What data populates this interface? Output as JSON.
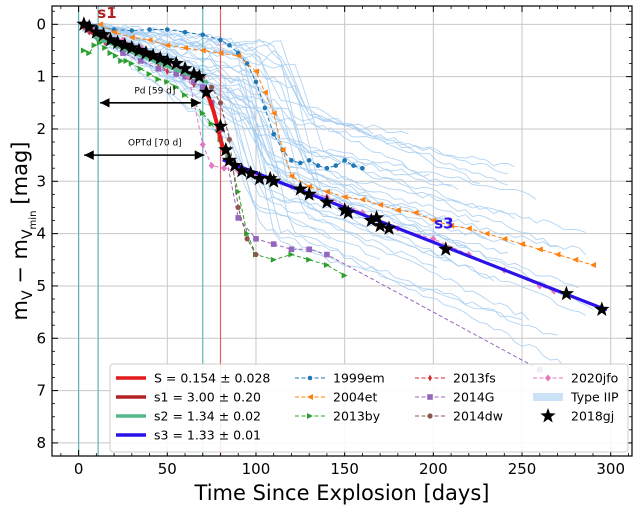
{
  "chart_data": {
    "type": "line",
    "xlabel": "Time Since Explosion [days]",
    "ylabel": "m_V − m_V_min [mag]",
    "ylabel_parts": {
      "main": "m",
      "sub1": "V",
      "minus": " − m",
      "sub2": "V",
      "subsub": "min",
      "unit": "[mag]"
    },
    "xlim": [
      -15,
      312
    ],
    "ylim": [
      8.25,
      -0.35
    ],
    "y_inverted": true,
    "xticks": [
      0,
      50,
      100,
      150,
      200,
      250,
      300
    ],
    "yticks": [
      0,
      1,
      2,
      3,
      4,
      5,
      6,
      7,
      8
    ],
    "grid": true,
    "legend_position": "lower-center",
    "colors": {
      "S": "#e41a1c",
      "s1": "#b22222",
      "s2": "#55b88a",
      "s3": "#2a12e8",
      "1999em": "#1f77b4",
      "2004et": "#ff7f0e",
      "2013by": "#2ca02c",
      "2013fs": "#d62728",
      "2014G": "#9467bd",
      "2014dw": "#8c564b",
      "2020jfo": "#e377c2",
      "TypeIIP": "#a6cdf0",
      "2018gj": "#000000",
      "vline_explosion": "#5fb3b3",
      "vline_ptd": "#5fb3b3",
      "vline_tr": "#e06060"
    },
    "fit_lines": [
      {
        "key": "S",
        "label": "S = 0.154 ± 0.028",
        "x": [
          72,
          74,
          76,
          78,
          80,
          82
        ],
        "y": [
          1.3,
          1.45,
          1.65,
          1.9,
          2.2,
          2.45
        ]
      },
      {
        "key": "s1",
        "label": "s1 = 3.00 ± 0.20",
        "x": [
          3,
          9
        ],
        "y": [
          0.02,
          0.2
        ]
      },
      {
        "key": "s2",
        "label": "s2 = 1.34 ± 0.02",
        "x": [
          9,
          72
        ],
        "y": [
          0.25,
          1.1
        ]
      },
      {
        "key": "s3",
        "label": "s3 = 1.33 ± 0.01",
        "x": [
          82,
          297
        ],
        "y": [
          2.6,
          5.45
        ]
      }
    ],
    "series": [
      {
        "name": "1999em",
        "key": "1999em",
        "marker": "circle",
        "x": [
          2,
          10,
          20,
          30,
          40,
          50,
          60,
          70,
          80,
          85,
          90,
          95,
          100,
          105,
          110,
          115,
          120,
          125,
          130,
          135,
          140,
          145,
          150,
          155,
          160
        ],
        "y": [
          0.0,
          0.05,
          0.1,
          0.12,
          0.1,
          0.1,
          0.15,
          0.2,
          0.3,
          0.4,
          0.55,
          0.75,
          1.1,
          1.6,
          2.1,
          2.4,
          2.6,
          2.65,
          2.6,
          2.7,
          2.75,
          2.7,
          2.6,
          2.7,
          2.75
        ]
      },
      {
        "name": "2004et",
        "key": "2004et",
        "marker": "triangle-left",
        "x": [
          12,
          20,
          30,
          40,
          50,
          60,
          70,
          80,
          90,
          100,
          105,
          110,
          115,
          120,
          130,
          140,
          150,
          160,
          170,
          180,
          190,
          200,
          210,
          220,
          230,
          240,
          250,
          260,
          270,
          280,
          290
        ],
        "y": [
          0.0,
          0.15,
          0.25,
          0.3,
          0.4,
          0.45,
          0.5,
          0.55,
          0.6,
          0.9,
          1.3,
          1.7,
          2.4,
          2.9,
          3.1,
          3.2,
          3.3,
          3.35,
          3.45,
          3.55,
          3.6,
          3.75,
          3.85,
          3.9,
          4.0,
          4.1,
          4.2,
          4.3,
          4.4,
          4.5,
          4.6
        ]
      },
      {
        "name": "2013by",
        "key": "2013by",
        "marker": "triangle-right",
        "x": [
          3,
          6,
          9,
          12,
          15,
          18,
          21,
          24,
          27,
          30,
          35,
          40,
          45,
          50,
          55,
          60,
          65,
          70,
          75,
          80,
          85,
          90,
          95,
          100,
          110,
          120,
          130,
          140,
          150
        ],
        "y": [
          0.5,
          0.55,
          0.4,
          0.35,
          0.45,
          0.55,
          0.6,
          0.7,
          0.7,
          0.75,
          0.85,
          0.95,
          1.05,
          1.1,
          1.2,
          1.35,
          1.5,
          1.7,
          1.9,
          2.2,
          2.5,
          3.2,
          4.0,
          4.4,
          4.5,
          4.4,
          4.5,
          4.6,
          4.8
        ]
      },
      {
        "name": "2013fs",
        "key": "2013fs",
        "marker": "diamond-thin",
        "x": [
          3,
          6,
          10,
          15,
          20,
          25,
          30,
          35,
          40,
          45,
          50,
          55,
          60,
          65
        ],
        "y": [
          0.05,
          0.15,
          0.25,
          0.35,
          0.35,
          0.4,
          0.45,
          0.55,
          0.6,
          0.75,
          0.9,
          0.95,
          1.0,
          1.15
        ]
      },
      {
        "name": "2014G",
        "key": "2014G",
        "marker": "square",
        "x": [
          5,
          15,
          25,
          35,
          45,
          55,
          60,
          65,
          70,
          75,
          80,
          90,
          100,
          110,
          120,
          130,
          140,
          260
        ],
        "y": [
          0.1,
          0.3,
          0.55,
          0.7,
          0.85,
          0.95,
          1.0,
          1.1,
          1.2,
          1.5,
          2.0,
          3.7,
          4.1,
          4.2,
          4.3,
          4.3,
          4.4,
          6.6
        ]
      },
      {
        "name": "2014dw",
        "key": "2014dw",
        "marker": "circle-small",
        "x": [
          5,
          10,
          15,
          20,
          25,
          30,
          35,
          40,
          45,
          50,
          55,
          60,
          65,
          70,
          75,
          80,
          85,
          90,
          95,
          100
        ],
        "y": [
          0.1,
          0.2,
          0.25,
          0.3,
          0.35,
          0.4,
          0.45,
          0.55,
          0.6,
          0.7,
          0.8,
          0.85,
          0.95,
          1.0,
          1.2,
          1.5,
          2.2,
          3.5,
          4.1,
          4.4
        ]
      },
      {
        "name": "2020jfo",
        "key": "2020jfo",
        "marker": "diamond",
        "x": [
          2,
          8,
          15,
          25,
          35,
          45,
          55,
          62,
          70,
          75,
          82,
          90,
          100,
          110,
          120,
          140,
          160,
          180,
          200,
          220,
          240,
          260,
          268
        ],
        "y": [
          0.0,
          0.1,
          0.2,
          0.3,
          0.45,
          0.6,
          0.8,
          1.0,
          2.3,
          2.7,
          2.75,
          2.8,
          2.9,
          3.0,
          3.1,
          3.3,
          3.6,
          3.9,
          4.1,
          4.4,
          4.7,
          5.0,
          5.1
        ]
      },
      {
        "name": "Type IIP",
        "key": "TypeIIP",
        "marker": "band",
        "x": [],
        "y": []
      },
      {
        "name": "2018gj",
        "key": "2018gj",
        "marker": "star",
        "x": [
          3,
          6,
          10,
          14,
          18,
          22,
          26,
          30,
          34,
          38,
          42,
          46,
          50,
          55,
          60,
          65,
          68,
          72,
          80,
          83,
          85,
          88,
          92,
          97,
          102,
          108,
          110,
          125,
          130,
          140,
          150,
          152,
          165,
          168,
          170,
          175,
          207,
          275,
          295
        ],
        "y": [
          0.0,
          0.05,
          0.15,
          0.2,
          0.3,
          0.35,
          0.4,
          0.45,
          0.5,
          0.55,
          0.6,
          0.65,
          0.7,
          0.75,
          0.85,
          0.95,
          1.0,
          1.3,
          1.95,
          2.4,
          2.6,
          2.7,
          2.8,
          2.85,
          2.95,
          2.95,
          3.0,
          3.15,
          3.25,
          3.4,
          3.55,
          3.6,
          3.75,
          3.7,
          3.85,
          3.9,
          4.3,
          5.15,
          5.45
        ]
      }
    ],
    "annotations": [
      {
        "key": "s1_label",
        "text": "s1",
        "x": 16,
        "y": -0.12,
        "color_key": "s1"
      },
      {
        "key": "s3_label",
        "text": "s3",
        "x": 206,
        "y": 3.9,
        "color_key": "s3"
      },
      {
        "key": "pd",
        "text": "Pd [59 d]",
        "x1": 11,
        "x2": 70,
        "y": 1.5,
        "label_x": 43,
        "label_y": 1.32
      },
      {
        "key": "optd",
        "text": "OPTd [70 d]",
        "x1": 2,
        "x2": 72,
        "y": 2.5,
        "label_x": 43,
        "label_y": 2.32
      }
    ],
    "vlines": [
      {
        "x": 0,
        "color_key": "vline_explosion"
      },
      {
        "x": 11,
        "color_key": "vline_ptd"
      },
      {
        "x": 70,
        "color_key": "vline_ptd"
      },
      {
        "x": 80,
        "color_key": "vline_tr"
      }
    ],
    "legend": {
      "columns": [
        [
          "S",
          "s1",
          "s2",
          "s3"
        ],
        [
          "1999em",
          "2004et",
          "2013by"
        ],
        [
          "2013fs",
          "2014G",
          "2014dw"
        ],
        [
          "2020jfo",
          "TypeIIP",
          "2018gj"
        ]
      ]
    }
  }
}
